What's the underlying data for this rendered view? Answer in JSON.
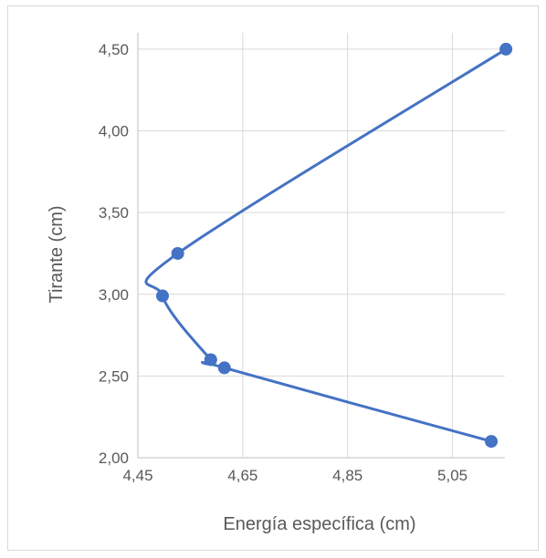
{
  "chart_data": {
    "type": "scatter",
    "xlabel": "Energía específica (cm)",
    "ylabel": "Tirante (cm)",
    "xlim": [
      4.45,
      5.15
    ],
    "ylim": [
      2.0,
      4.6
    ],
    "x_ticks": [
      4.45,
      4.65,
      4.85,
      5.05
    ],
    "x_tick_labels": [
      "4,45",
      "4,65",
      "4,85",
      "5,05"
    ],
    "y_ticks": [
      2.0,
      2.5,
      3.0,
      3.5,
      4.0,
      4.5
    ],
    "y_tick_labels": [
      "2,00",
      "2,50",
      "3,00",
      "3,50",
      "4,00",
      "4,50"
    ],
    "grid": true,
    "smooth_line": true,
    "series": [
      {
        "color": "#4472c4",
        "points": [
          {
            "x": 5.124,
            "y": 2.1
          },
          {
            "x": 4.615,
            "y": 2.55
          },
          {
            "x": 4.589,
            "y": 2.6
          },
          {
            "x": 4.497,
            "y": 2.99
          },
          {
            "x": 4.526,
            "y": 3.25
          },
          {
            "x": 5.152,
            "y": 4.5
          }
        ]
      }
    ]
  }
}
